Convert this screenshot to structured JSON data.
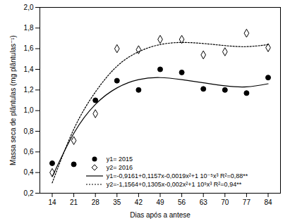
{
  "chart_data": {
    "type": "scatter",
    "x_label": "Dias após a antese",
    "y_label": "Massa seca de plântulas (mg plântulas⁻¹)",
    "x": [
      14,
      21,
      28,
      35,
      42,
      49,
      56,
      63,
      70,
      77,
      84
    ],
    "series": [
      {
        "name": "y1= 2015",
        "type": "scatter",
        "color": "#000000",
        "marker": "circle",
        "values": [
          0.49,
          0.48,
          1.1,
          1.29,
          1.2,
          1.4,
          1.37,
          1.21,
          1.2,
          1.17,
          1.32
        ]
      },
      {
        "name": "y2= 2016",
        "type": "scatter",
        "color": "#000000",
        "marker": "diamond",
        "values": [
          0.4,
          0.71,
          0.97,
          1.6,
          1.59,
          1.69,
          1.69,
          1.54,
          1.57,
          1.75,
          1.61
        ]
      },
      {
        "name": "y1=-0,9161+0,1157x-0,0019x²+1 10⁻⁵x³ R²=0,88**",
        "type": "line",
        "color": "#000000",
        "line_style": "solid",
        "values": [
          0.36,
          0.78,
          1.06,
          1.22,
          1.3,
          1.32,
          1.3,
          1.27,
          1.24,
          1.23,
          1.26
        ]
      },
      {
        "name": "y2=-1,1564+0,1305x-0,002x²+1 10⁵x³ R²=0,94**",
        "type": "line",
        "color": "#000000",
        "line_style": "dotted",
        "values": [
          0.3,
          0.82,
          1.18,
          1.43,
          1.57,
          1.64,
          1.66,
          1.65,
          1.63,
          1.62,
          1.64
        ]
      }
    ],
    "xlim": [
      10,
      88
    ],
    "xticks": [
      14,
      21,
      28,
      35,
      42,
      49,
      56,
      63,
      70,
      77,
      84
    ],
    "ylim": [
      0.2,
      2.0
    ],
    "yticks": [
      {
        "value": 0.2,
        "label": "0,2"
      },
      {
        "value": 0.4,
        "label": "0,4"
      },
      {
        "value": 0.6,
        "label": "0,6"
      },
      {
        "value": 0.8,
        "label": "0,8"
      },
      {
        "value": 1.0,
        "label": "1,0"
      },
      {
        "value": 1.2,
        "label": "1,2"
      },
      {
        "value": 1.4,
        "label": "1,4"
      },
      {
        "value": 1.6,
        "label": "1,6"
      },
      {
        "value": 1.8,
        "label": "1,8"
      },
      {
        "value": 2.0,
        "label": "2,0"
      }
    ],
    "legend": "lower right",
    "grid": false
  }
}
